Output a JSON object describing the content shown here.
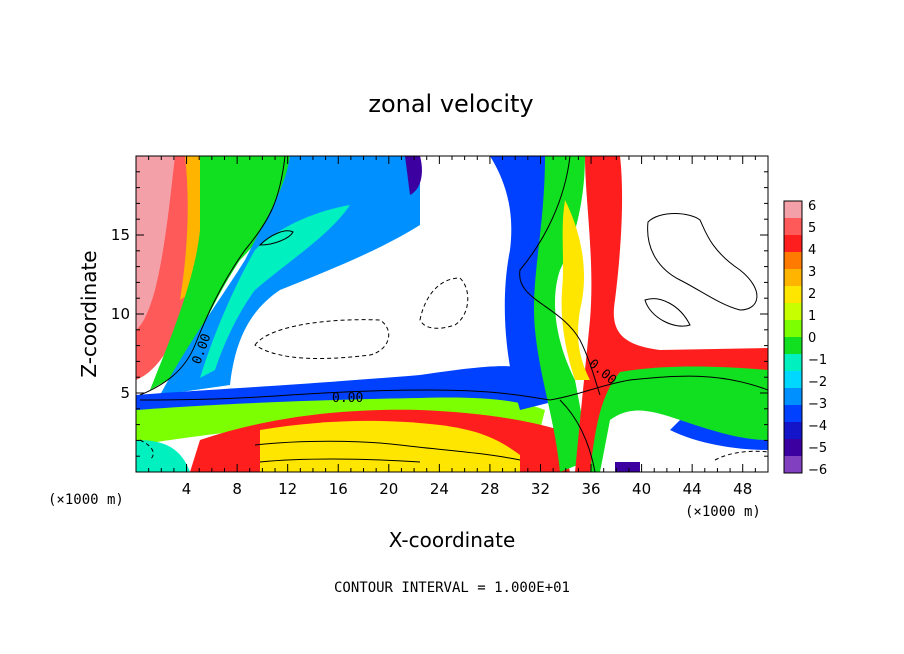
{
  "chart_data": {
    "type": "heatmap",
    "title": "zonal velocity",
    "xlabel": "X-coordinate",
    "ylabel": "Z-coordinate",
    "x_unit_label": "(×1000 m)",
    "z_unit_label": "(×1000 m)",
    "xlim": [
      0,
      50
    ],
    "ylim": [
      0,
      20
    ],
    "x_ticks": [
      4,
      8,
      12,
      16,
      20,
      24,
      28,
      32,
      36,
      40,
      44,
      48
    ],
    "y_ticks": [
      5,
      10,
      15
    ],
    "colorbar": {
      "ticks": [
        6,
        5,
        4,
        3,
        2,
        1,
        0,
        -1,
        -2,
        -3,
        -4,
        -5,
        -6
      ],
      "colors": [
        "#f4a0a8",
        "#ff5a5a",
        "#ff1e1e",
        "#ff7a00",
        "#ffb400",
        "#ffe600",
        "#c8ff00",
        "#7cff00",
        "#10e020",
        "#00f0c0",
        "#00d8ff",
        "#0090ff",
        "#0040ff",
        "#1414c8",
        "#3c00a0",
        "#8040c0"
      ]
    },
    "contour_labels": [
      "0.00",
      "0.00",
      "0.00"
    ],
    "footer": "CONTOUR INTERVAL = 1.000E+01"
  }
}
